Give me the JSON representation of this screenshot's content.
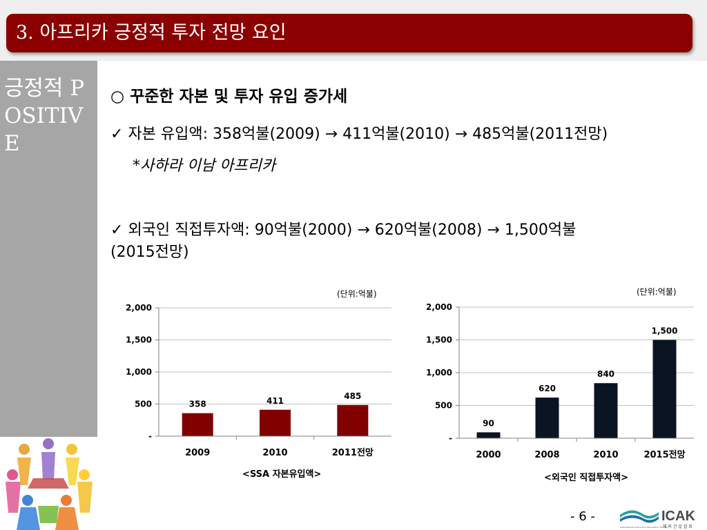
{
  "slide": {
    "title": "3. 아프리카 긍정적 투자 전망 요인",
    "side_label": "긍정적 POSITIVE",
    "heading": "꾸준한 자본 및 투자 유입 증가세",
    "heading_bullet": "○",
    "check_glyph": "✓",
    "bullet1": "자본 유입액: 358억불(2009) → 411억불(2010) → 485억불(2011전망)",
    "note": "*사하라 이남 아프리카",
    "bullet2_line1": "외국인 직접투자액: 90억불(2000) → 620억불(2008)  → 1,500억불",
    "bullet2_line2": "(2015전망)",
    "page_number": "- 6 -",
    "logo_text": "ICAK",
    "logo_subtext": "해 외 건 설 협 회",
    "logo_small": "International Contractors Association of Korea"
  },
  "colors": {
    "title_bar": "#8b0000",
    "sidebar": "#a6a6a6",
    "bar_ssa": "#800000",
    "bar_fdi": "#0b1422"
  },
  "chart_data": [
    {
      "type": "bar",
      "unit_label": "(단위:억불)",
      "caption": "<SSA 자본유입액>",
      "categories": [
        "2009",
        "2010",
        "2011전망"
      ],
      "values": [
        358,
        411,
        485
      ],
      "value_labels": [
        "358",
        "411",
        "485"
      ],
      "ylim": [
        0,
        2000
      ],
      "yticks": [
        0,
        500,
        1000,
        1500,
        2000
      ],
      "ytick_labels": [
        "-",
        "500",
        "1,000",
        "1,500",
        "2,000"
      ],
      "grid": true
    },
    {
      "type": "bar",
      "unit_label": "(단위:억불)",
      "caption": "<외국인 직접투자액>",
      "categories": [
        "2000",
        "2008",
        "2010",
        "2015전망"
      ],
      "values": [
        90,
        620,
        840,
        1500
      ],
      "value_labels": [
        "90",
        "620",
        "840",
        "1,500"
      ],
      "ylim": [
        0,
        2000
      ],
      "yticks": [
        0,
        500,
        1000,
        1500,
        2000
      ],
      "ytick_labels": [
        "-",
        "500",
        "1,000",
        "1,500",
        "2,000"
      ],
      "grid": true
    }
  ]
}
